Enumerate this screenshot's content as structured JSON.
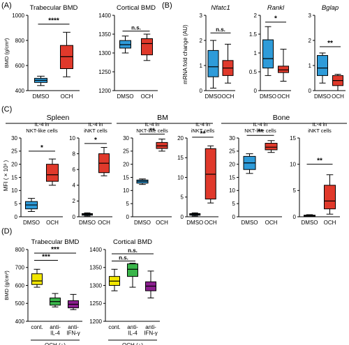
{
  "panel_letters": [
    "(A)",
    "(B)",
    "(C)",
    "(D)"
  ],
  "section_titles": [
    "Spleen",
    "BM",
    "Bone"
  ],
  "shared_ylabels": {
    "B": "mRNA fold change (AU)",
    "C": "MFI ( × 10³ )"
  },
  "colors": {
    "blue": "#2e9bd9",
    "red": "#e0392b",
    "yellow": "#f2e600",
    "green": "#39b54a",
    "purple": "#8b1f8f"
  },
  "chart_data": [
    {
      "id": "A1",
      "type": "box",
      "title": "Trabecular BMD",
      "ylabel": "BMD (g/cm³)",
      "ylim": [
        400,
        1000
      ],
      "yticks": [
        400,
        600,
        800,
        1000
      ],
      "categories": [
        "DMSO",
        "OCH"
      ],
      "colors": [
        "#2e9bd9",
        "#e0392b"
      ],
      "boxes": [
        {
          "min": 440,
          "q1": 465,
          "median": 482,
          "q3": 498,
          "max": 515
        },
        {
          "min": 510,
          "q1": 575,
          "median": 670,
          "q3": 760,
          "max": 865
        }
      ],
      "annotations": [
        {
          "text": "****",
          "between": [
            0,
            1
          ],
          "level": 930
        }
      ]
    },
    {
      "id": "A2",
      "type": "box",
      "title": "Cortical BMD",
      "ylabel": "",
      "ylim": [
        1200,
        1400
      ],
      "yticks": [
        1200,
        1250,
        1300,
        1350,
        1400
      ],
      "categories": [
        "DMSO",
        "OCH"
      ],
      "colors": [
        "#2e9bd9",
        "#e0392b"
      ],
      "boxes": [
        {
          "min": 1300,
          "q1": 1313,
          "median": 1322,
          "q3": 1333,
          "max": 1345
        },
        {
          "min": 1280,
          "q1": 1295,
          "median": 1325,
          "q3": 1338,
          "max": 1350
        }
      ],
      "annotations": [
        {
          "text": "n.s.",
          "between": [
            0,
            1
          ],
          "level": 1358
        }
      ]
    },
    {
      "id": "B1",
      "type": "box",
      "title": "Nfatc1",
      "title_italic": true,
      "ylabel": "",
      "ylim": [
        0,
        3
      ],
      "yticks": [
        0,
        1,
        2,
        3
      ],
      "categories": [
        "DMSO",
        "OCH"
      ],
      "colors": [
        "#2e9bd9",
        "#e0392b"
      ],
      "boxes": [
        {
          "min": 0.1,
          "q1": 0.55,
          "median": 0.95,
          "q3": 1.6,
          "max": 2.0
        },
        {
          "min": 0.3,
          "q1": 0.6,
          "median": 0.9,
          "q3": 1.2,
          "max": 1.85
        }
      ],
      "annotations": [
        {
          "text": "n.s.",
          "between": [
            0,
            1
          ],
          "level": 2.3
        }
      ]
    },
    {
      "id": "B2",
      "type": "box",
      "title": "Rankl",
      "title_italic": true,
      "ylabel": "",
      "ylim": [
        0,
        2
      ],
      "yticks": [
        0,
        0.5,
        1.0,
        1.5,
        2.0
      ],
      "categories": [
        "DMSO",
        "OCH"
      ],
      "colors": [
        "#2e9bd9",
        "#e0392b"
      ],
      "boxes": [
        {
          "min": 0.4,
          "q1": 0.6,
          "median": 0.85,
          "q3": 1.35,
          "max": 1.7
        },
        {
          "min": 0.25,
          "q1": 0.48,
          "median": 0.55,
          "q3": 0.65,
          "max": 1.1
        }
      ],
      "annotations": [
        {
          "text": "*",
          "between": [
            0,
            1
          ],
          "level": 1.82
        }
      ]
    },
    {
      "id": "B3",
      "type": "box",
      "title": "Bglap",
      "title_italic": true,
      "ylabel": "",
      "ylim": [
        0,
        3
      ],
      "yticks": [
        0,
        1,
        2,
        3
      ],
      "categories": [
        "DMSO",
        "OCH"
      ],
      "colors": [
        "#2e9bd9",
        "#e0392b"
      ],
      "boxes": [
        {
          "min": 0.3,
          "q1": 0.6,
          "median": 0.9,
          "q3": 1.4,
          "max": 1.5
        },
        {
          "min": 0.0,
          "q1": 0.2,
          "median": 0.4,
          "q3": 0.6,
          "max": 0.65
        }
      ],
      "annotations": [
        {
          "text": "**",
          "between": [
            0,
            1
          ],
          "level": 1.75
        }
      ]
    },
    {
      "id": "C1",
      "type": "box",
      "title": "IL-4 in\nNKT-like cells",
      "ylabel": "",
      "ylim": [
        0,
        30
      ],
      "yticks": [
        0,
        5,
        10,
        15,
        20,
        25,
        30
      ],
      "categories": [
        "DMSO",
        "OCH"
      ],
      "colors": [
        "#2e9bd9",
        "#e0392b"
      ],
      "boxes": [
        {
          "min": 2.0,
          "q1": 3.0,
          "median": 4.5,
          "q3": 5.8,
          "max": 7.0
        },
        {
          "min": 12.0,
          "q1": 13.5,
          "median": 16.0,
          "q3": 20.0,
          "max": 22.0
        }
      ],
      "annotations": [
        {
          "text": "*",
          "between": [
            0,
            1
          ],
          "level": 25
        }
      ]
    },
    {
      "id": "C2",
      "type": "box",
      "title": "IL-4 in\niNKT cells",
      "ylabel": "",
      "ylim": [
        0,
        10
      ],
      "yticks": [
        0,
        2,
        4,
        6,
        8,
        10
      ],
      "categories": [
        "DMSO",
        "OCH"
      ],
      "colors": [
        "#2e9bd9",
        "#e0392b"
      ],
      "boxes": [
        {
          "min": 0.1,
          "q1": 0.2,
          "median": 0.3,
          "q3": 0.4,
          "max": 0.5
        },
        {
          "min": 5.2,
          "q1": 5.6,
          "median": 6.8,
          "q3": 8.0,
          "max": 8.8
        }
      ],
      "annotations": [
        {
          "text": "*",
          "between": [
            0,
            1
          ],
          "level": 9.3
        }
      ]
    },
    {
      "id": "C3",
      "type": "box",
      "title": "IL-4 in\nNKT-like cells",
      "ylabel": "",
      "ylim": [
        0,
        30
      ],
      "yticks": [
        0,
        5,
        10,
        15,
        20,
        25,
        30
      ],
      "categories": [
        "DMSO",
        "OCH"
      ],
      "colors": [
        "#2e9bd9",
        "#e0392b"
      ],
      "boxes": [
        {
          "min": 12.3,
          "q1": 12.8,
          "median": 13.5,
          "q3": 14.0,
          "max": 14.4
        },
        {
          "min": 25.0,
          "q1": 26.0,
          "median": 27.0,
          "q3": 28.3,
          "max": 29.6
        }
      ],
      "annotations": [
        {
          "text": "**",
          "between": [
            0,
            1
          ],
          "level": 31.5
        }
      ]
    },
    {
      "id": "C4",
      "type": "box",
      "title": "IL-4 in\niNKT cells",
      "ylabel": "",
      "ylim": [
        0,
        20
      ],
      "yticks": [
        0,
        5,
        10,
        15,
        20
      ],
      "categories": [
        "DMSO",
        "OCH"
      ],
      "colors": [
        "#2e9bd9",
        "#e0392b"
      ],
      "boxes": [
        {
          "min": 0.2,
          "q1": 0.4,
          "median": 0.6,
          "q3": 0.8,
          "max": 1.0
        },
        {
          "min": 3.5,
          "q1": 4.5,
          "median": 10.8,
          "q3": 17.3,
          "max": 18.0
        }
      ],
      "annotations": [
        {
          "text": "**",
          "between": [
            0,
            1
          ],
          "level": 20.2
        }
      ]
    },
    {
      "id": "C5",
      "type": "box",
      "title": "IL-4 in\nNKT-like cells",
      "ylabel": "",
      "ylim": [
        0,
        30
      ],
      "yticks": [
        0,
        5,
        10,
        15,
        20,
        25,
        30
      ],
      "categories": [
        "DMSO",
        "OCH"
      ],
      "colors": [
        "#2e9bd9",
        "#e0392b"
      ],
      "boxes": [
        {
          "min": 16.5,
          "q1": 18.0,
          "median": 20.5,
          "q3": 23.0,
          "max": 24.0
        },
        {
          "min": 24.5,
          "q1": 25.5,
          "median": 26.5,
          "q3": 28.0,
          "max": 29.0
        }
      ],
      "annotations": [
        {
          "text": "**",
          "between": [
            0,
            1
          ],
          "level": 31
        }
      ]
    },
    {
      "id": "C6",
      "type": "box",
      "title": "IL-4 in\niNKT cells",
      "ylabel": "",
      "ylim": [
        0,
        15
      ],
      "yticks": [
        0,
        5,
        10,
        15
      ],
      "categories": [
        "DMSO",
        "OCH"
      ],
      "colors": [
        "#2e9bd9",
        "#e0392b"
      ],
      "boxes": [
        {
          "min": 0.05,
          "q1": 0.1,
          "median": 0.2,
          "q3": 0.3,
          "max": 0.4
        },
        {
          "min": 0.5,
          "q1": 1.5,
          "median": 3.0,
          "q3": 6.0,
          "max": 8.0
        }
      ],
      "annotations": [
        {
          "text": "**",
          "between": [
            0,
            1
          ],
          "level": 10
        }
      ]
    },
    {
      "id": "D1",
      "type": "box",
      "title": "Trabecular BMD",
      "ylabel": "BMD (g/cm³)",
      "ylim": [
        400,
        800
      ],
      "yticks": [
        400,
        500,
        600,
        700,
        800
      ],
      "categories": [
        "cont.",
        "anti-\nIL-4",
        "anti-\nIFN-γ"
      ],
      "group_label": "OCH (+)",
      "colors": [
        "#f2e600",
        "#39b54a",
        "#8b1f8f"
      ],
      "boxes": [
        {
          "min": 590,
          "q1": 605,
          "median": 625,
          "q3": 665,
          "max": 690
        },
        {
          "min": 480,
          "q1": 490,
          "median": 510,
          "q3": 530,
          "max": 555
        },
        {
          "min": 465,
          "q1": 475,
          "median": 495,
          "q3": 515,
          "max": 550
        }
      ],
      "annotations": [
        {
          "text": "***",
          "between": [
            0,
            2
          ],
          "level": 780
        },
        {
          "text": "***",
          "between": [
            0,
            1
          ],
          "level": 740
        }
      ]
    },
    {
      "id": "D2",
      "type": "box",
      "title": "Cortical BMD",
      "ylabel": "",
      "ylim": [
        1200,
        1400
      ],
      "yticks": [
        1200,
        1250,
        1300,
        1350,
        1400
      ],
      "categories": [
        "cont.",
        "anti-\nIL-4",
        "anti-\nIFN-γ"
      ],
      "group_label": "OCH (+)",
      "colors": [
        "#f2e600",
        "#39b54a",
        "#8b1f8f"
      ],
      "boxes": [
        {
          "min": 1285,
          "q1": 1300,
          "median": 1312,
          "q3": 1325,
          "max": 1345
        },
        {
          "min": 1295,
          "q1": 1325,
          "median": 1345,
          "q3": 1360,
          "max": 1362
        },
        {
          "min": 1265,
          "q1": 1285,
          "median": 1298,
          "q3": 1310,
          "max": 1340
        }
      ],
      "annotations": [
        {
          "text": "n.s.",
          "between": [
            0,
            2
          ],
          "level": 1388
        },
        {
          "text": "n.s.",
          "between": [
            0,
            1
          ],
          "level": 1368
        }
      ]
    }
  ]
}
